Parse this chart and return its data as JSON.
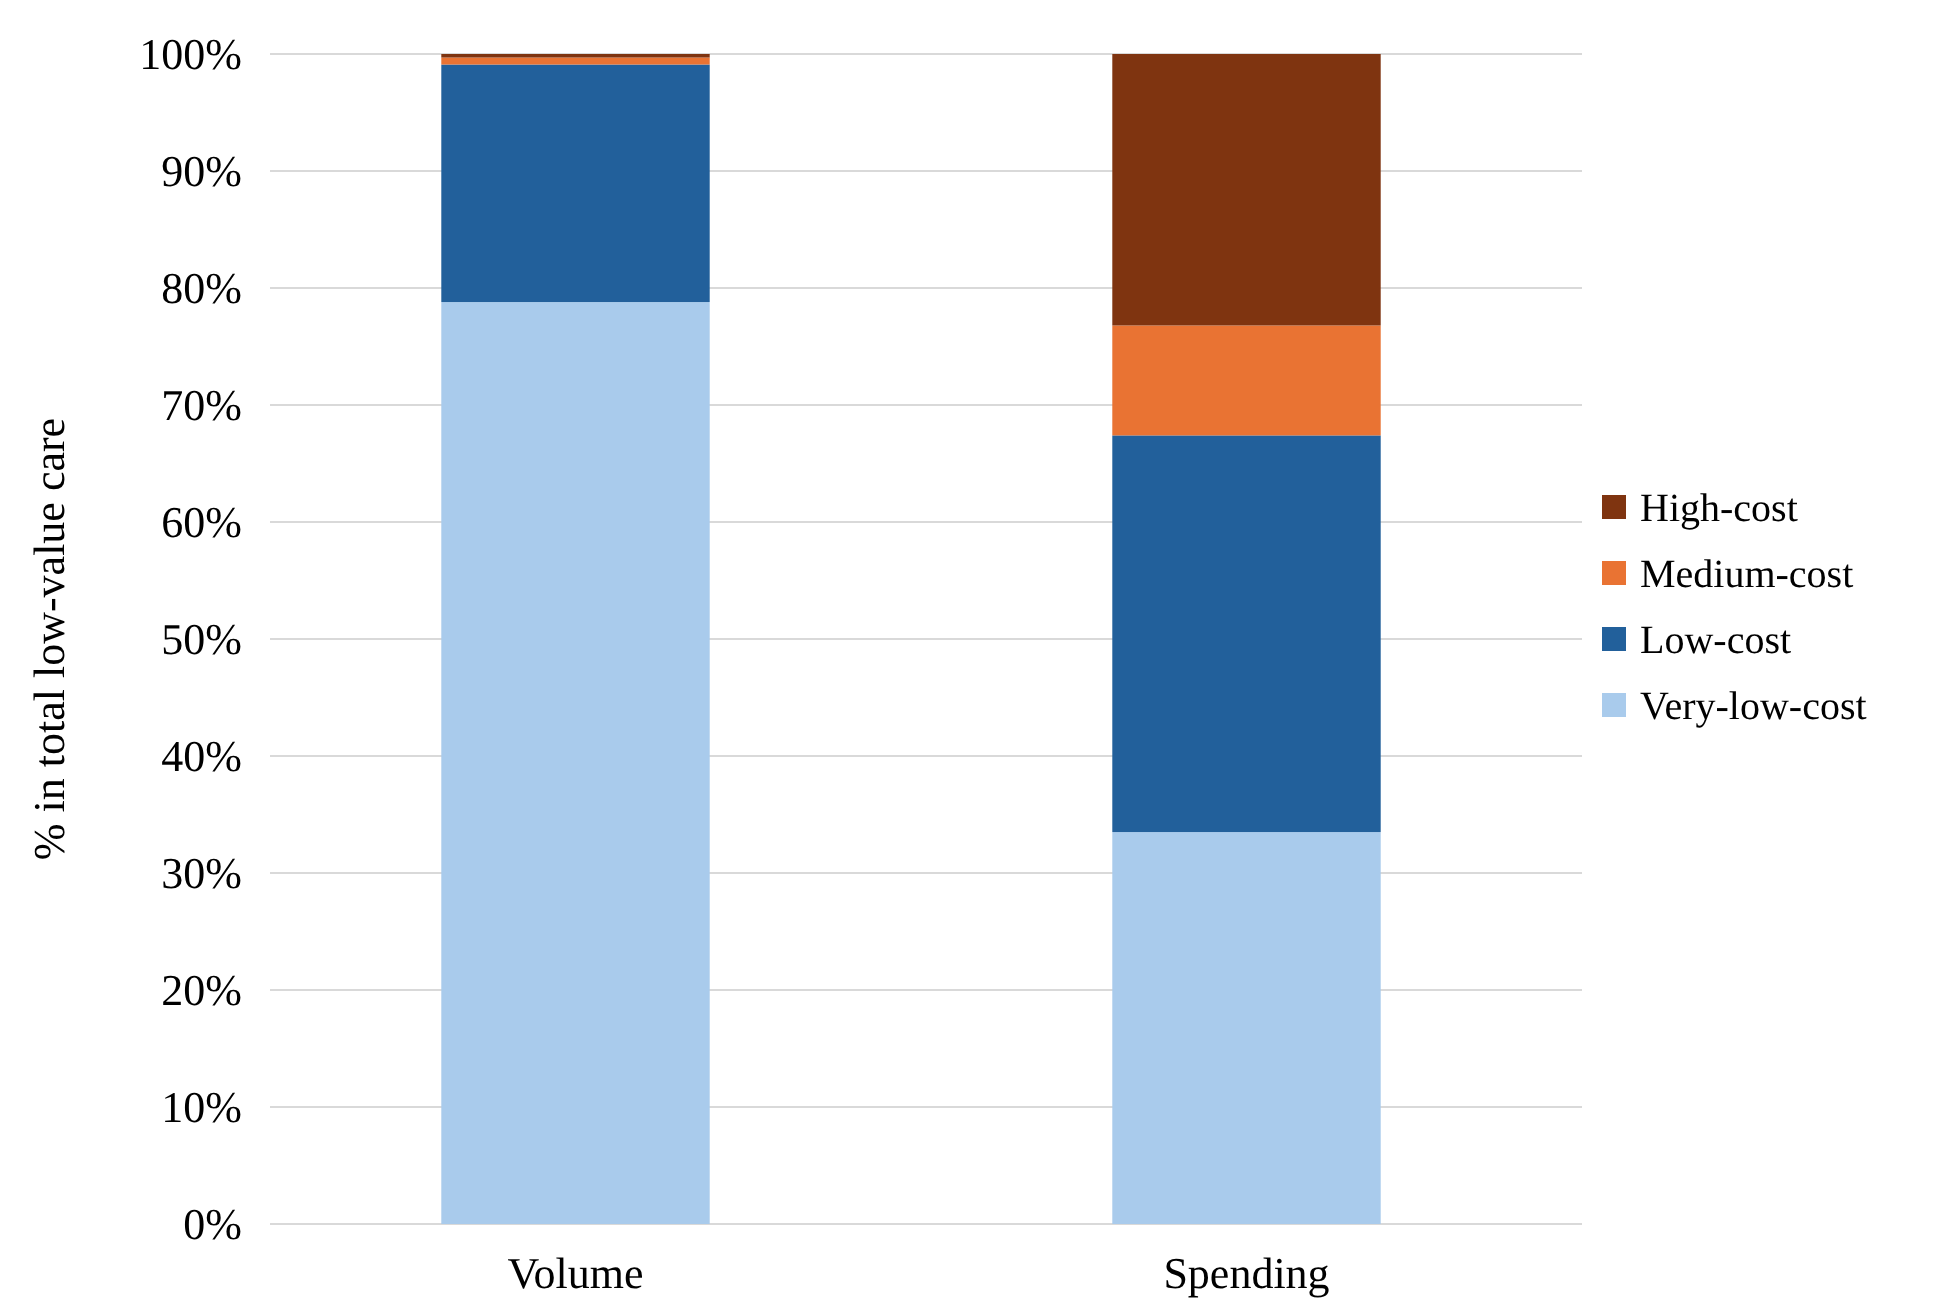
{
  "chart_data": {
    "type": "bar",
    "stacked": true,
    "ylabel": "% in total low-value care",
    "categories": [
      "Volume",
      "Spending"
    ],
    "series": [
      {
        "name": "Very-low-cost",
        "color": "#a9cbec",
        "values": [
          78.8,
          33.5
        ]
      },
      {
        "name": "Low-cost",
        "color": "#22609b",
        "values": [
          20.3,
          33.9
        ]
      },
      {
        "name": "Medium-cost",
        "color": "#e97333",
        "values": [
          0.6,
          9.4
        ]
      },
      {
        "name": "High-cost",
        "color": "#7f3410",
        "values": [
          0.3,
          23.2
        ]
      }
    ],
    "ylim": [
      0,
      100
    ],
    "yticks": [
      {
        "value": 0,
        "label": "0%"
      },
      {
        "value": 10,
        "label": "10%"
      },
      {
        "value": 20,
        "label": "20%"
      },
      {
        "value": 30,
        "label": "30%"
      },
      {
        "value": 40,
        "label": "40%"
      },
      {
        "value": 50,
        "label": "50%"
      },
      {
        "value": 60,
        "label": "60%"
      },
      {
        "value": 70,
        "label": "70%"
      },
      {
        "value": 80,
        "label": "80%"
      },
      {
        "value": 90,
        "label": "90%"
      },
      {
        "value": 100,
        "label": "100%"
      }
    ],
    "grid": "y",
    "legend": "right"
  }
}
